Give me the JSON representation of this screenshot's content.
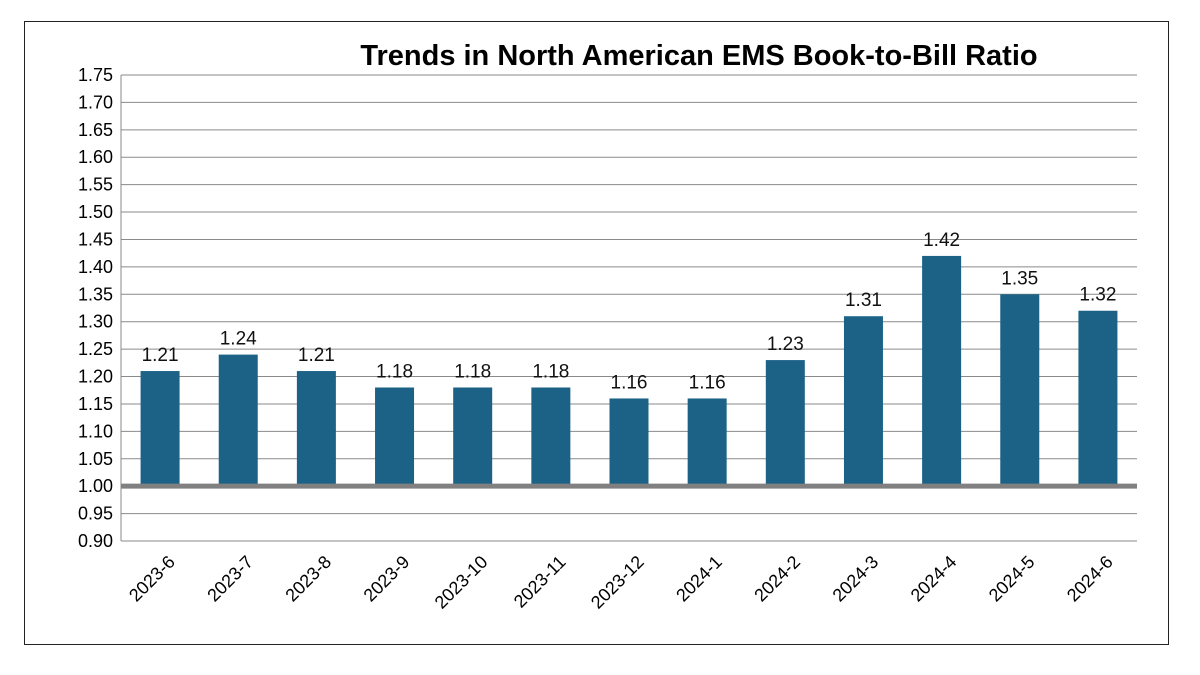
{
  "chart_data": {
    "type": "bar",
    "title": "Trends in North American EMS Book-to-Bill Ratio",
    "categories": [
      "2023-6",
      "2023-7",
      "2023-8",
      "2023-9",
      "2023-10",
      "2023-11",
      "2023-12",
      "2024-1",
      "2024-2",
      "2024-3",
      "2024-4",
      "2024-5",
      "2024-6"
    ],
    "values": [
      1.21,
      1.24,
      1.21,
      1.18,
      1.18,
      1.18,
      1.16,
      1.16,
      1.23,
      1.31,
      1.42,
      1.35,
      1.32
    ],
    "data_labels": [
      "1.21",
      "1.24",
      "1.21",
      "1.18",
      "1.18",
      "1.18",
      "1.16",
      "1.16",
      "1.23",
      "1.31",
      "1.42",
      "1.35",
      "1.32"
    ],
    "y_ticks": [
      "0.90",
      "0.95",
      "1.00",
      "1.05",
      "1.10",
      "1.15",
      "1.20",
      "1.25",
      "1.30",
      "1.35",
      "1.40",
      "1.45",
      "1.50",
      "1.55",
      "1.60",
      "1.65",
      "1.70",
      "1.75"
    ],
    "ylim": [
      0.9,
      1.75
    ],
    "baseline": 1.0,
    "xlabel": "",
    "ylabel": "",
    "grid": true,
    "bar_color": "#1b6286",
    "baseline_color": "#808080",
    "grid_color": "#8a8a8a"
  }
}
